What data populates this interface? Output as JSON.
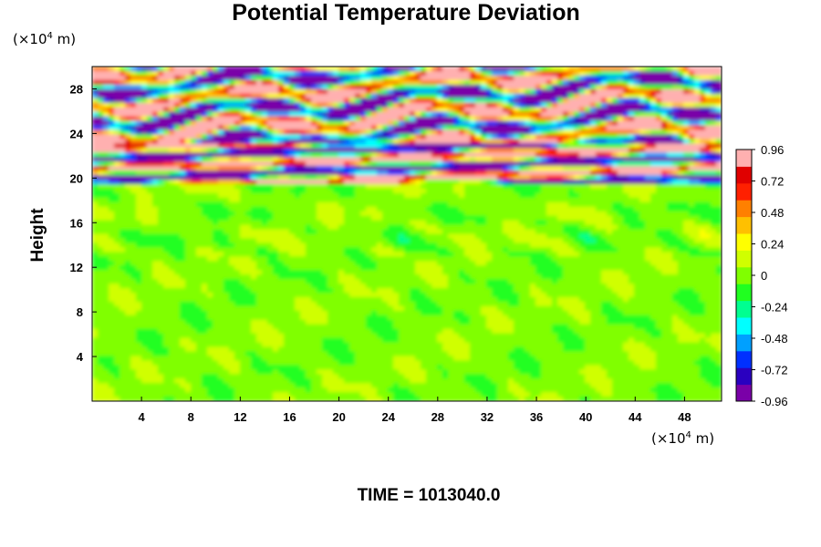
{
  "chart_data": {
    "type": "heatmap",
    "title": "Potential Temperature Deviation",
    "ylabel": "Height",
    "xlabel": "",
    "x_unit": {
      "prefix": "(×10",
      "exp": "4",
      "suffix": " m)"
    },
    "y_unit": {
      "prefix": "(×10",
      "exp": "4",
      "suffix": " m)"
    },
    "xlim": [
      0,
      51
    ],
    "ylim": [
      0,
      30
    ],
    "x_ticks": [
      4,
      8,
      12,
      16,
      20,
      24,
      28,
      32,
      36,
      40,
      44,
      48
    ],
    "y_ticks": [
      4,
      8,
      12,
      16,
      20,
      24,
      28
    ],
    "colorbar": {
      "range": [
        -0.96,
        0.96
      ],
      "ticks": [
        0.96,
        0.72,
        0.48,
        0.24,
        0,
        -0.24,
        -0.48,
        -0.72,
        -0.96
      ],
      "colors": [
        "#7a00a8",
        "#2a00c0",
        "#0030ff",
        "#00a0ff",
        "#00ffff",
        "#00ff90",
        "#20ff20",
        "#80ff00",
        "#d0ff00",
        "#ffff00",
        "#ffc000",
        "#ff8000",
        "#ff2000",
        "#e00000",
        "#ffb0b0"
      ]
    },
    "field_description_bands": [
      {
        "y_range": [
          0,
          19.5
        ],
        "dominant_value": 0.0
      },
      {
        "y_range": [
          19.5,
          23
        ],
        "dominant_value": "alternating ±0.96"
      },
      {
        "y_range": [
          23,
          30
        ],
        "dominant_value": "mixed -0.96 to 0.96"
      }
    ],
    "time_label": "TIME = 1013040.0"
  }
}
